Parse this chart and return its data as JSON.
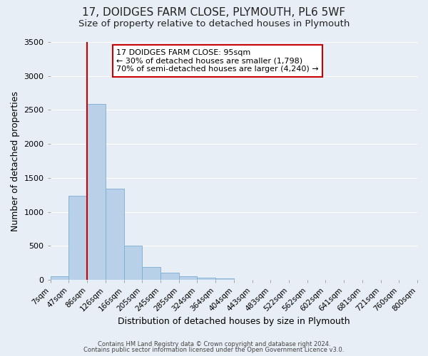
{
  "title": "17, DOIDGES FARM CLOSE, PLYMOUTH, PL6 5WF",
  "subtitle": "Size of property relative to detached houses in Plymouth",
  "bar_values": [
    50,
    1240,
    2590,
    1340,
    500,
    190,
    110,
    50,
    30,
    25,
    0,
    0,
    0,
    0,
    0,
    0,
    0,
    0,
    0,
    0
  ],
  "x_labels": [
    "7sqm",
    "47sqm",
    "86sqm",
    "126sqm",
    "166sqm",
    "205sqm",
    "245sqm",
    "285sqm",
    "324sqm",
    "364sqm",
    "404sqm",
    "443sqm",
    "483sqm",
    "522sqm",
    "562sqm",
    "602sqm",
    "641sqm",
    "681sqm",
    "721sqm",
    "760sqm",
    "800sqm"
  ],
  "bar_color": "#b8d0e8",
  "bar_edge_color": "#7aaed4",
  "vline_color": "#cc0000",
  "ylim": [
    0,
    3500
  ],
  "ylabel": "Number of detached properties",
  "xlabel": "Distribution of detached houses by size in Plymouth",
  "annotation_title": "17 DOIDGES FARM CLOSE: 95sqm",
  "annotation_line1": "← 30% of detached houses are smaller (1,798)",
  "annotation_line2": "70% of semi-detached houses are larger (4,240) →",
  "annotation_box_facecolor": "#ffffff",
  "annotation_box_edgecolor": "#cc0000",
  "footnote1": "Contains HM Land Registry data © Crown copyright and database right 2024.",
  "footnote2": "Contains public sector information licensed under the Open Government Licence v3.0.",
  "background_color": "#e8eef5",
  "grid_color": "#ffffff",
  "title_fontsize": 11,
  "subtitle_fontsize": 9.5,
  "tick_fontsize": 7.5,
  "ylabel_fontsize": 9,
  "xlabel_fontsize": 9,
  "annotation_fontsize": 8,
  "footnote_fontsize": 6
}
